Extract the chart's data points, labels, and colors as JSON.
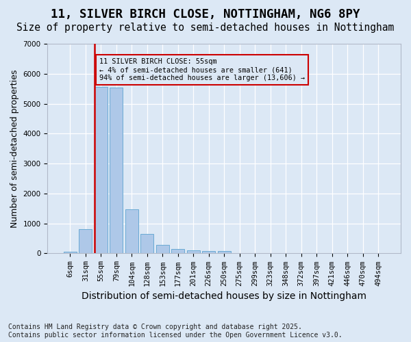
{
  "title": "11, SILVER BIRCH CLOSE, NOTTINGHAM, NG6 8PY",
  "subtitle": "Size of property relative to semi-detached houses in Nottingham",
  "xlabel": "Distribution of semi-detached houses by size in Nottingham",
  "ylabel": "Number of semi-detached properties",
  "footer": "Contains HM Land Registry data © Crown copyright and database right 2025.\nContains public sector information licensed under the Open Government Licence v3.0.",
  "categories": [
    "6sqm",
    "31sqm",
    "55sqm",
    "79sqm",
    "104sqm",
    "128sqm",
    "153sqm",
    "177sqm",
    "201sqm",
    "226sqm",
    "250sqm",
    "275sqm",
    "299sqm",
    "323sqm",
    "348sqm",
    "372sqm",
    "397sqm",
    "421sqm",
    "446sqm",
    "470sqm",
    "494sqm"
  ],
  "values": [
    50,
    800,
    5550,
    5530,
    1480,
    660,
    275,
    155,
    100,
    70,
    70,
    0,
    0,
    0,
    0,
    0,
    0,
    0,
    0,
    0,
    0
  ],
  "bar_color": "#aec8e8",
  "bar_edge_color": "#6aaad4",
  "highlight_index": 2,
  "red_line_color": "#cc0000",
  "annotation_text": "11 SILVER BIRCH CLOSE: 55sqm\n← 4% of semi-detached houses are smaller (641)\n94% of semi-detached houses are larger (13,606) →",
  "ylim_max": 7000,
  "yticks": [
    0,
    1000,
    2000,
    3000,
    4000,
    5000,
    6000,
    7000
  ],
  "bg_color": "#dce8f5",
  "grid_color": "#ffffff",
  "title_fontsize": 12.5,
  "subtitle_fontsize": 10.5,
  "xlabel_fontsize": 10,
  "ylabel_fontsize": 9,
  "tick_fontsize": 7.5,
  "footer_fontsize": 7
}
